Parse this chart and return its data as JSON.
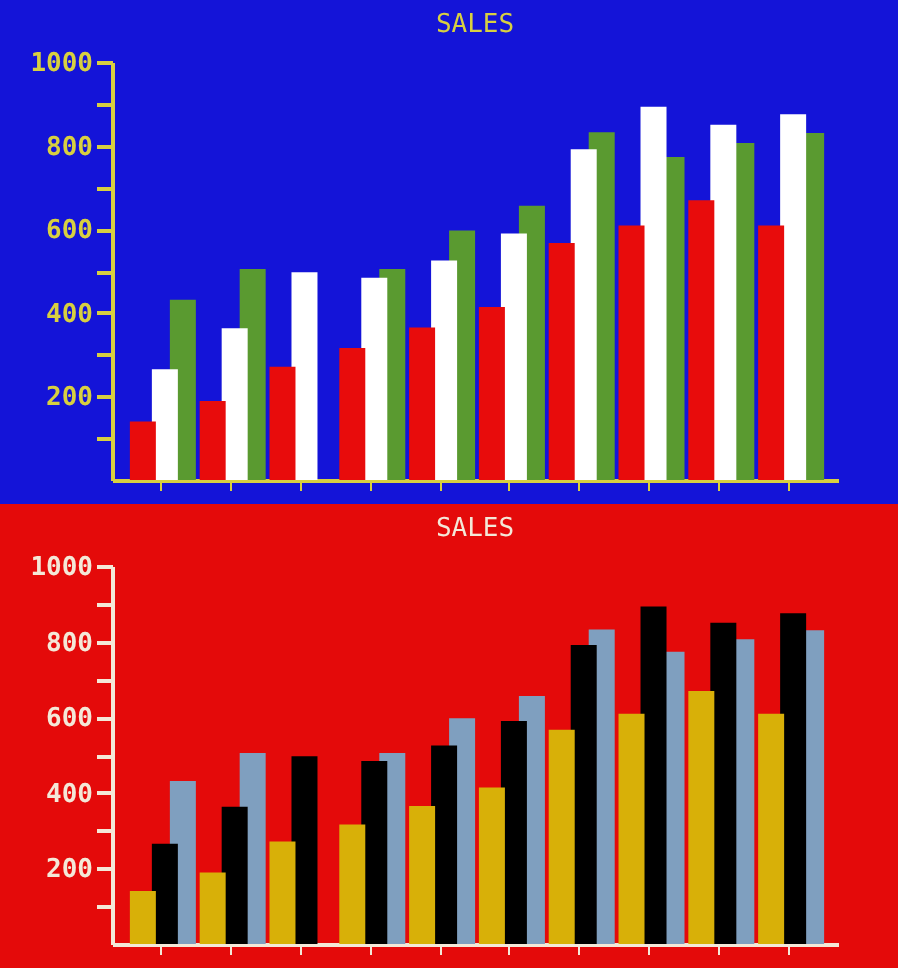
{
  "chart_data": [
    {
      "type": "bar",
      "title": "SALES",
      "categories": [
        null,
        null,
        null,
        null,
        null,
        null,
        null,
        null,
        null,
        null
      ],
      "series": [
        {
          "color": "#e80c0c",
          "values": [
            140,
            189,
            271,
            316,
            365,
            414,
            567,
            609,
            669,
            609
          ]
        },
        {
          "color": "#ffffff",
          "values": [
            265,
            363,
            497,
            484,
            525,
            590,
            791,
            893,
            850,
            875
          ]
        },
        {
          "color": "#5a9a30",
          "values": [
            431,
            505,
            null,
            505,
            597,
            656,
            832,
            773,
            806,
            830
          ]
        }
      ],
      "ylim": [
        0,
        1000
      ],
      "yticks": [
        {
          "value": 100,
          "label": null
        },
        200,
        {
          "value": 300,
          "label": null
        },
        400,
        {
          "value": 500,
          "label": null
        },
        600,
        {
          "value": 700,
          "label": null
        },
        800,
        {
          "value": 900,
          "label": null
        },
        1000
      ],
      "tick_labels": "y",
      "legend": false,
      "grid": false
    },
    {
      "type": "bar",
      "title": "SALES",
      "categories": [
        null,
        null,
        null,
        null,
        null,
        null,
        null,
        null,
        null,
        null
      ],
      "series": [
        {
          "color": "#d8b008",
          "values": [
            140,
            189,
            271,
            316,
            365,
            414,
            567,
            609,
            669,
            609
          ]
        },
        {
          "color": "#000000",
          "values": [
            265,
            363,
            497,
            484,
            525,
            590,
            791,
            893,
            850,
            875
          ]
        },
        {
          "color": "#7f9fbf",
          "values": [
            431,
            505,
            null,
            505,
            597,
            656,
            832,
            773,
            806,
            830
          ]
        }
      ],
      "ylim": [
        0,
        1000
      ],
      "yticks": [
        {
          "value": 100,
          "label": null
        },
        200,
        {
          "value": 300,
          "label": null
        },
        400,
        {
          "value": 500,
          "label": null
        },
        600,
        {
          "value": 700,
          "label": null
        },
        800,
        {
          "value": 900,
          "label": null
        },
        1000
      ],
      "tick_labels": "y",
      "legend": false,
      "grid": false
    }
  ]
}
